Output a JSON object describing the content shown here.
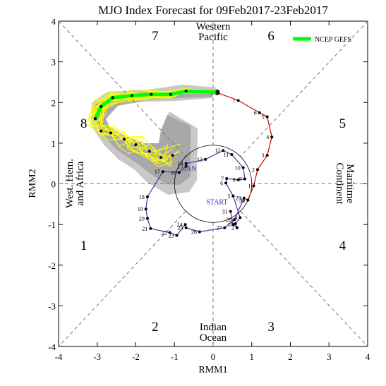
{
  "chart_data": {
    "type": "line",
    "title": "MJO Index Forecast for 09Feb2017-23Feb2017",
    "xlabel": "RMM1",
    "ylabel": "RMM2",
    "xlim": [
      -4,
      4
    ],
    "ylim": [
      -4,
      4
    ],
    "x_ticks": [
      "-4",
      "-3",
      "-2",
      "-1",
      "0",
      "1",
      "2",
      "3",
      "4"
    ],
    "y_ticks": [
      "-4",
      "-3",
      "-2",
      "-1",
      "0",
      "1",
      "2",
      "3",
      "4"
    ],
    "legend": {
      "label": "NCEP GEFS",
      "position": "top-right",
      "color": "#00ff00"
    },
    "phase_numbers": [
      {
        "label": "1",
        "x": -3.35,
        "y": -1.5
      },
      {
        "label": "2",
        "x": -1.5,
        "y": -3.5
      },
      {
        "label": "3",
        "x": 1.5,
        "y": -3.5
      },
      {
        "label": "4",
        "x": 3.35,
        "y": -1.5
      },
      {
        "label": "5",
        "x": 3.35,
        "y": 1.5
      },
      {
        "label": "6",
        "x": 1.5,
        "y": 3.65
      },
      {
        "label": "7",
        "x": -1.5,
        "y": 3.65
      },
      {
        "label": "8",
        "x": -3.35,
        "y": 1.5
      }
    ],
    "region_labels": [
      {
        "lines": [
          "Western",
          "Pacific"
        ],
        "side": "top"
      },
      {
        "lines": [
          "Indian",
          "Ocean"
        ],
        "side": "bottom"
      },
      {
        "lines": [
          "West. Hem.",
          "and Africa"
        ],
        "side": "left"
      },
      {
        "lines": [
          "Maritime",
          "Continent"
        ],
        "side": "right"
      }
    ],
    "month_labels": [
      {
        "label": "JAN",
        "x": -0.6,
        "y": 0.32
      },
      {
        "label": "START",
        "x": 0.1,
        "y": -0.5
      }
    ],
    "observed_january": {
      "color": "#5b2c9f",
      "labels": [
        "31",
        "1",
        "2",
        "3",
        "4",
        "5",
        "6",
        "7",
        "8",
        "9",
        "10",
        "11",
        "12",
        "13",
        "14",
        "15",
        "16",
        "17",
        "18",
        "19",
        "20",
        "21",
        "22",
        "23",
        "24",
        "25",
        "26",
        "27",
        "28",
        "29",
        "30"
      ],
      "x": [
        0.45,
        0.52,
        0.62,
        0.58,
        0.7,
        0.52,
        0.33,
        0.35,
        0.65,
        0.82,
        0.78,
        0.48,
        0.26,
        -0.2,
        -0.7,
        -0.7,
        -0.88,
        -1.3,
        -1.7,
        -1.74,
        -1.7,
        -1.62,
        -1.12,
        -0.94,
        -0.72,
        -0.7,
        -0.35,
        0.3,
        0.55,
        0.8,
        0.9
      ],
      "y": [
        -0.68,
        -1.0,
        -1.08,
        -0.98,
        -0.83,
        -0.3,
        0.02,
        0.13,
        0.1,
        0.12,
        0.4,
        0.72,
        0.82,
        0.6,
        0.5,
        0.43,
        0.28,
        0.3,
        -0.32,
        -0.62,
        -0.85,
        -1.1,
        -1.2,
        -1.27,
        -1.0,
        -1.08,
        -1.18,
        -1.08,
        -0.88,
        -0.35,
        -0.4
      ]
    },
    "observed_february": {
      "color": "#cc0000",
      "labels": [
        "31",
        "1",
        "2",
        "3",
        "4",
        "5",
        "6",
        "7",
        "8"
      ],
      "x": [
        0.9,
        1.05,
        1.15,
        1.4,
        1.52,
        1.4,
        1.2,
        0.65,
        0.08
      ],
      "y": [
        -0.4,
        -0.05,
        0.35,
        0.7,
        1.15,
        1.65,
        1.75,
        2.05,
        2.25
      ]
    },
    "start_point": {
      "x": 0.1,
      "y": 2.25
    },
    "ensemble_mean_forecast": {
      "color": "#00ff00",
      "x": [
        0.1,
        -0.7,
        -1.1,
        -1.6,
        -2.1,
        -2.6,
        -2.9,
        -3.05
      ],
      "y": [
        2.25,
        2.28,
        2.2,
        2.2,
        2.17,
        2.12,
        1.9,
        1.6
      ]
    },
    "ensemble_mean_lower_branch": {
      "x": [
        -3.05,
        -2.9,
        -2.65,
        -2.3,
        -2.0,
        -1.65,
        -1.35,
        -1.05
      ],
      "y": [
        1.6,
        1.3,
        1.25,
        1.1,
        0.96,
        0.8,
        0.65,
        0.7
      ]
    }
  }
}
